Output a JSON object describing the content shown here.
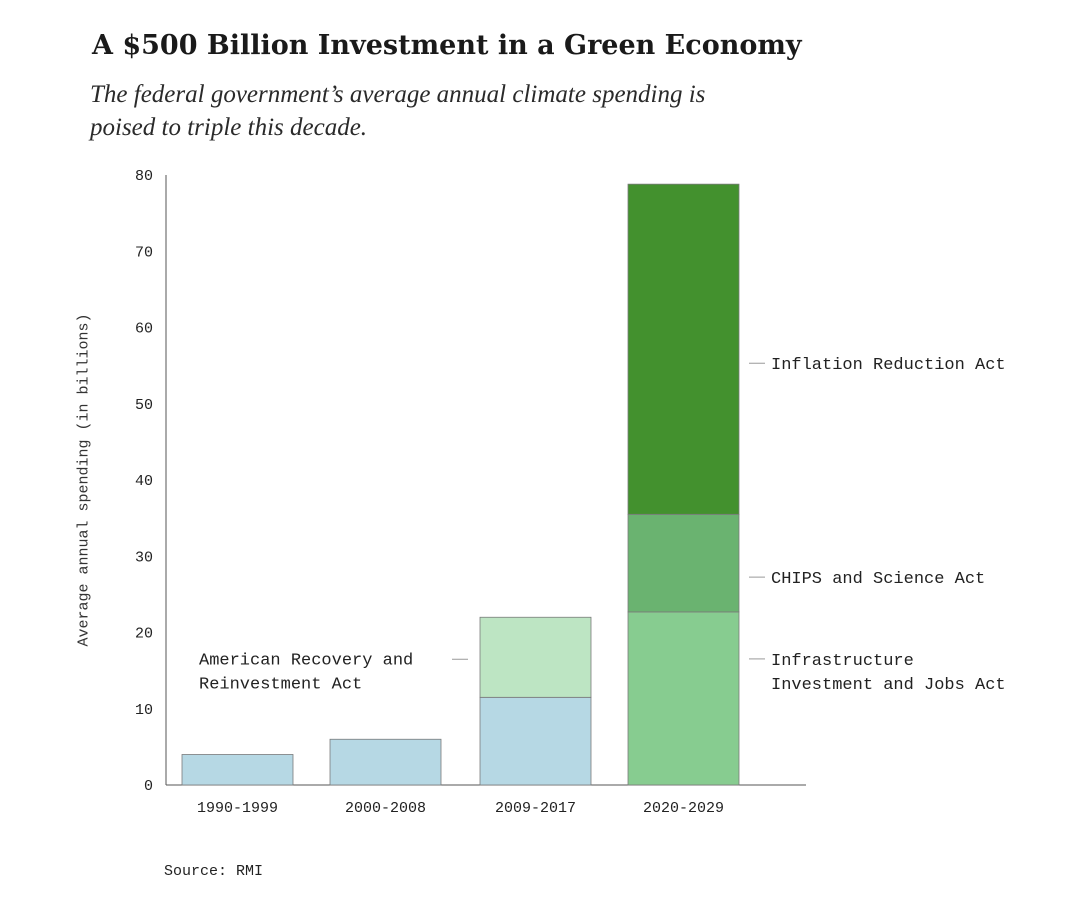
{
  "chart_data": {
    "type": "bar",
    "stacked": true,
    "title": "A $500 Billion Investment in a Green Economy",
    "subtitle": "The federal government’s average annual climate spending is poised to triple this decade.",
    "xlabel": "",
    "ylabel": "Average annual spending (in billions)",
    "ylim": [
      0,
      80
    ],
    "yticks": [
      "0",
      "10",
      "20",
      "30",
      "40",
      "50",
      "60",
      "70",
      "80"
    ],
    "categories": [
      "1990-1999",
      "2000-2008",
      "2009-2017",
      "2020-2029"
    ],
    "series": [
      {
        "label": "",
        "color": "#b6d8e4",
        "values": [
          4.0,
          6.0,
          11.5,
          0
        ]
      },
      {
        "label": "American Recovery and Reinvestment Act",
        "color": "#bde5c3",
        "values": [
          0,
          0,
          10.5,
          0
        ]
      },
      {
        "label": "Infrastructure Investment and Jobs Act",
        "color": "#87cc90",
        "values": [
          0,
          0,
          0,
          22.7
        ]
      },
      {
        "label": "CHIPS and Science Act",
        "color": "#6ab370",
        "values": [
          0,
          0,
          0,
          12.8
        ]
      },
      {
        "label": "Inflation Reduction Act",
        "color": "#43912e",
        "values": [
          0,
          0,
          0,
          43.3
        ]
      }
    ],
    "annotations": [
      {
        "lines": [
          "American Recovery and",
          "Reinvestment Act"
        ],
        "target_series": 1,
        "side": "left"
      },
      {
        "lines": [
          "Inflation Reduction Act"
        ],
        "target_series": 4,
        "side": "right"
      },
      {
        "lines": [
          "CHIPS and Science Act"
        ],
        "target_series": 3,
        "side": "right"
      },
      {
        "lines": [
          "Infrastructure",
          "Investment and Jobs Act"
        ],
        "target_series": 2,
        "side": "right"
      }
    ],
    "grid": false,
    "legend": "none"
  },
  "source": "Source: RMI"
}
